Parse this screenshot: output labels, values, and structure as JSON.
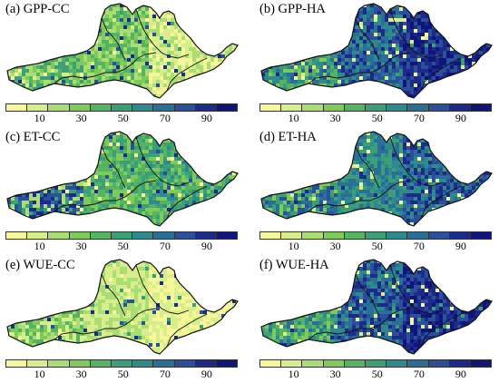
{
  "colorbar": {
    "labels": [
      "10",
      "30",
      "50",
      "70",
      "90"
    ],
    "colors": [
      "#f6f79a",
      "#d8ee8c",
      "#aade74",
      "#7ecb5c",
      "#55b462",
      "#3d9f78",
      "#2e8a8d",
      "#2a6f98",
      "#2b4f98",
      "#1c2a8a",
      "#10157a"
    ]
  },
  "panels": [
    {
      "title": "(a) GPP-CC",
      "theme": "low"
    },
    {
      "title": "(b) GPP-HA",
      "theme": "high"
    },
    {
      "title": "(c) ET-CC",
      "theme": "mid"
    },
    {
      "title": "(d) ET-HA",
      "theme": "midhigh"
    },
    {
      "title": "(e) WUE-CC",
      "theme": "verylow"
    },
    {
      "title": "(f) WUE-HA",
      "theme": "high"
    }
  ]
}
